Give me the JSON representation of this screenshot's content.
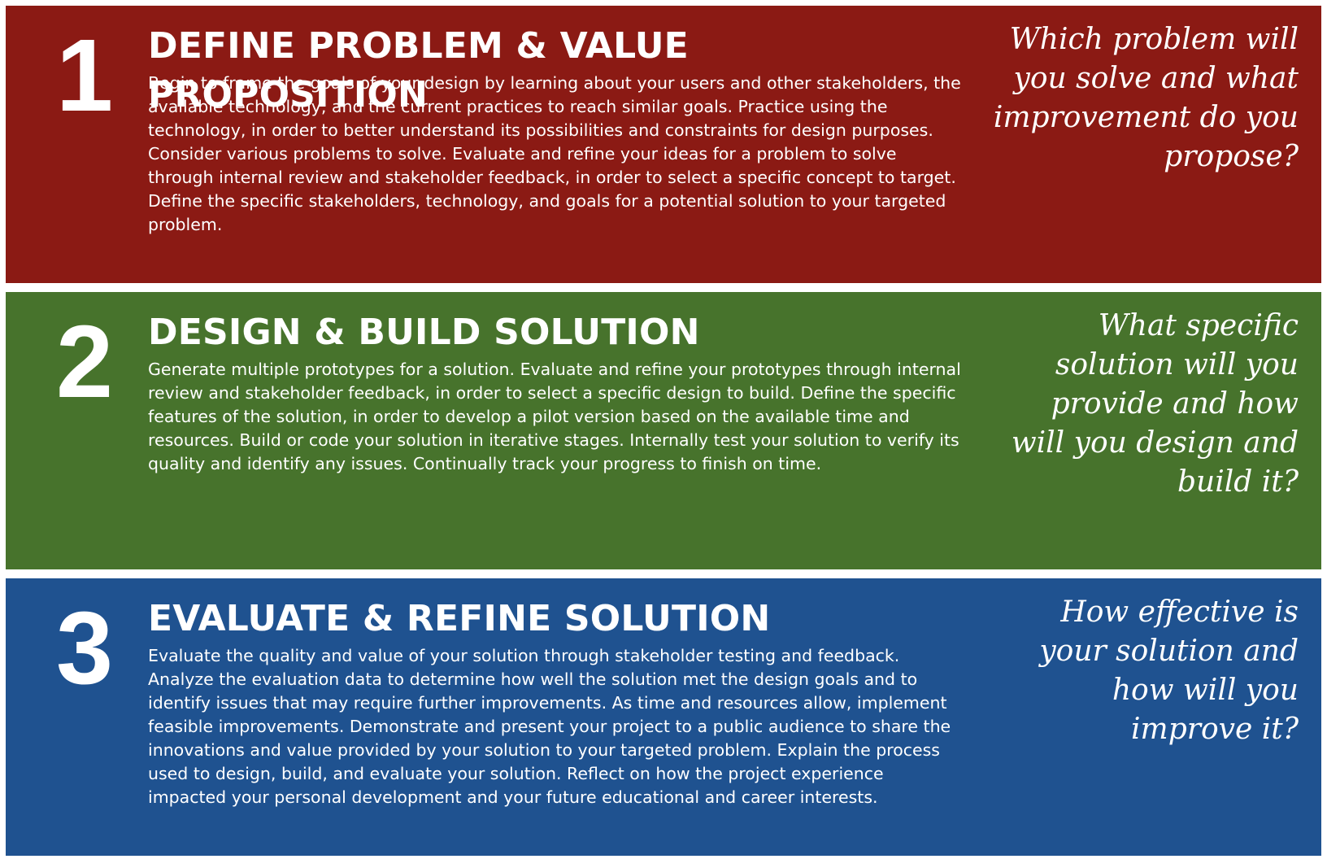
{
  "phases": [
    {
      "number": "1",
      "title": "DEFINE PROBLEM & VALUE PROPOSITION",
      "description": "Begin to frame the goals of your design by learning about your users and other stakeholders, the available technology, and the current practices to reach similar goals. Practice using the technology, in order to better understand its possibilities and constraints for design purposes. Consider various problems to solve. Evaluate and refine your ideas for a problem to solve through internal review and stakeholder feedback, in order to select a specific concept to target. Define the specific stakeholders, technology, and goals for a potential solution to your targeted problem.",
      "question": "Which problem will you solve and what improvement do you propose?",
      "color": "#8b1a14"
    },
    {
      "number": "2",
      "title": "DESIGN & BUILD SOLUTION",
      "description": "Generate multiple prototypes for a solution. Evaluate and refine your prototypes through internal review and stakeholder feedback, in order to select a specific design to build. Define the specific features of the solution, in order to develop a pilot version based on the available time and resources. Build or code your solution in iterative stages.  Internally test your solution to verify its quality and identify any issues. Continually track your progress to finish on time.",
      "question": "What specific solution will you provide and how will you design and build it?",
      "color": "#47732c"
    },
    {
      "number": "3",
      "title": "EVALUATE & REFINE SOLUTION",
      "description": "Evaluate the quality and value of your solution through stakeholder testing and feedback. Analyze the evaluation data to determine how well the solution met the design goals and to identify issues that may require further improvements. As time and resources allow, implement feasible improvements. Demonstrate and present your project to a public audience to share the innovations and value provided by your solution to your targeted problem. Explain the process used to design, build, and evaluate your solution. Reflect on how the project experience impacted your personal development and your future educational and career interests.",
      "question": "How effective is your solution and how will you improve it?",
      "color": "#1f5290"
    }
  ]
}
